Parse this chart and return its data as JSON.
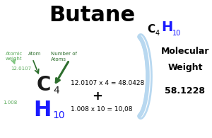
{
  "title": "Butane",
  "title_fontsize": 22,
  "formula_C": "C",
  "formula_C_sub": "4",
  "formula_H": "H",
  "formula_H_sub": "10",
  "mol_weight_label1": "Molecular",
  "mol_weight_label2": "Weight",
  "mol_weight_value": "58.1228",
  "atom_C": "C",
  "atom_C_sub": "4",
  "atom_H": "H",
  "atom_H_sub": "10",
  "atomic_weight_C": "12.0107",
  "atomic_weight_H": "1.008",
  "calc_C": "12.0107 x 4 = 48.0428",
  "calc_H": "1.008 x 10 = 10,08",
  "plus_sign": "+",
  "label_atomic_weight": "Atomic\nweight",
  "label_atom": "Atom",
  "label_number_of_atoms": "Number of\nAtoms",
  "color_C": "#1a1a1a",
  "color_H": "#1a1aff",
  "color_green_light": "#7dc47d",
  "color_green_dark": "#2d6e2d",
  "color_bracket": "#b8d8f0",
  "color_formula_C": "#000000",
  "color_formula_H": "#1a1aff",
  "color_label_green": "#5aaa5a"
}
